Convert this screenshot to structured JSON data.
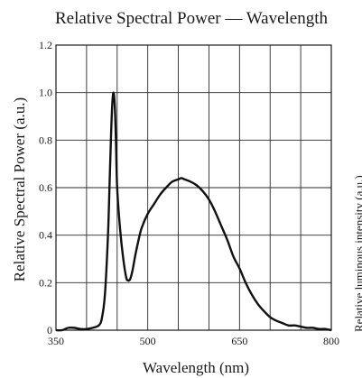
{
  "chart_data": {
    "type": "line",
    "title": "Relative Spectral Power — Wavelength",
    "xlabel": "Wavelength  (nm)",
    "ylabel": "Relative Spectral Power  (a.u.)",
    "side_label": "Relative luminous intensity (a.u.)",
    "xlim": [
      350,
      800
    ],
    "ylim": [
      0,
      1.2
    ],
    "x_ticks": [
      350,
      500,
      650,
      800
    ],
    "x_tick_labels": [
      "350",
      "500",
      "650",
      "800"
    ],
    "y_ticks": [
      0,
      0.2,
      0.4,
      0.6,
      0.8,
      1.0,
      1.2
    ],
    "y_tick_labels": [
      "0",
      "0.2",
      "0.4",
      "0.6",
      "0.8",
      "1.0",
      "1.2"
    ],
    "grid": true,
    "grid_x_step": 50,
    "grid_y_step": 0.2,
    "line_color": "#111111",
    "series": [
      {
        "x": [
          350,
          360,
          370,
          380,
          390,
          400,
          410,
          420,
          425,
          430,
          435,
          438,
          440,
          442,
          444,
          446,
          448,
          450,
          455,
          460,
          465,
          468,
          470,
          472,
          475,
          480,
          485,
          490,
          500,
          510,
          520,
          530,
          540,
          550,
          555,
          560,
          570,
          580,
          590,
          600,
          610,
          620,
          630,
          640,
          650,
          660,
          670,
          680,
          690,
          700,
          710,
          720,
          730,
          740,
          750,
          760,
          770,
          780,
          790,
          800
        ],
        "y": [
          0.0,
          0.0,
          0.01,
          0.01,
          0.005,
          0.005,
          0.01,
          0.02,
          0.05,
          0.15,
          0.4,
          0.65,
          0.82,
          0.95,
          1.0,
          0.95,
          0.8,
          0.6,
          0.42,
          0.3,
          0.22,
          0.21,
          0.21,
          0.22,
          0.25,
          0.32,
          0.38,
          0.43,
          0.49,
          0.53,
          0.57,
          0.6,
          0.625,
          0.635,
          0.64,
          0.635,
          0.625,
          0.61,
          0.585,
          0.55,
          0.5,
          0.44,
          0.38,
          0.31,
          0.26,
          0.2,
          0.15,
          0.11,
          0.08,
          0.055,
          0.04,
          0.03,
          0.02,
          0.02,
          0.015,
          0.01,
          0.01,
          0.005,
          0.005,
          0.0
        ]
      }
    ]
  }
}
